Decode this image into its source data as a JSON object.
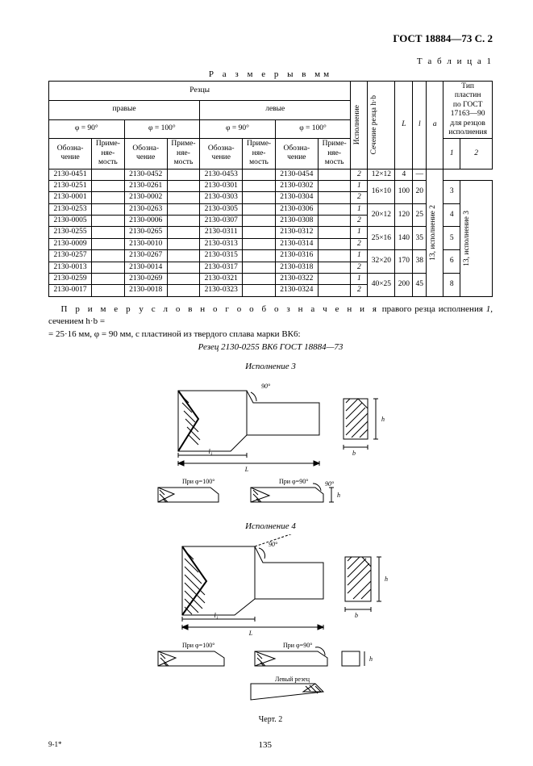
{
  "header": {
    "doc_id": "ГОСТ 18884—73  С. 2",
    "table_label": "Т а б л и ц а 1",
    "sizes_caption": "Р а з м е р ы  в  мм"
  },
  "table": {
    "group_cutters": "Резцы",
    "right": "правые",
    "left": "левые",
    "phi90": "φ = 90°",
    "phi100": "φ = 100°",
    "designation": "Обозна-\nчение",
    "applicability": "Приме-\nняе-\nмость",
    "execution": "Исполнение",
    "cross_section": "Сечение резца h·b",
    "L": "L",
    "l": "l",
    "a": "a",
    "plate_type": "Тип\nпластин\nпо ГОСТ\n17163—90\nдля резцов\nисполнения",
    "col1": "1",
    "col2": "2",
    "rows": [
      {
        "c1": "2130-0451",
        "c2": "2130-0452",
        "c3": "2130-0453",
        "c4": "2130-0454",
        "exec": "2",
        "hb": "12×12",
        "L": "",
        "l": "",
        "a": "4",
        "t1": "—",
        "t2": ""
      },
      {
        "c1": "2130-0251",
        "c2": "2130-0261",
        "c3": "2130-0301",
        "c4": "2130-0302",
        "exec": "1",
        "hb": "16×10",
        "L": "100",
        "l": "20",
        "a": "3",
        "t1": "",
        "t2": ""
      },
      {
        "c1": "2130-0001",
        "c2": "2130-0002",
        "c3": "2130-0303",
        "c4": "2130-0304",
        "exec": "2",
        "hb": "",
        "L": "",
        "l": "",
        "a": "",
        "t1": "",
        "t2": ""
      },
      {
        "c1": "2130-0253",
        "c2": "2130-0263",
        "c3": "2130-0305",
        "c4": "2130-0306",
        "exec": "1",
        "hb": "20×12",
        "L": "120",
        "l": "25",
        "a": "4",
        "t1": "",
        "t2": ""
      },
      {
        "c1": "2130-0005",
        "c2": "2130-0006",
        "c3": "2130-0307",
        "c4": "2130-0308",
        "exec": "2",
        "hb": "",
        "L": "",
        "l": "",
        "a": "",
        "t1": "",
        "t2": ""
      },
      {
        "c1": "2130-0255",
        "c2": "2130-0265",
        "c3": "2130-0311",
        "c4": "2130-0312",
        "exec": "1",
        "hb": "25×16",
        "L": "140",
        "l": "35",
        "a": "5",
        "t1": "",
        "t2": ""
      },
      {
        "c1": "2130-0009",
        "c2": "2130-0010",
        "c3": "2130-0313",
        "c4": "2130-0314",
        "exec": "2",
        "hb": "",
        "L": "",
        "l": "",
        "a": "",
        "t1": "",
        "t2": ""
      },
      {
        "c1": "2130-0257",
        "c2": "2130-0267",
        "c3": "2130-0315",
        "c4": "2130-0316",
        "exec": "1",
        "hb": "32×20",
        "L": "170",
        "l": "38",
        "a": "6",
        "t1": "",
        "t2": ""
      },
      {
        "c1": "2130-0013",
        "c2": "2130-0014",
        "c3": "2130-0317",
        "c4": "2130-0318",
        "exec": "2",
        "hb": "",
        "L": "",
        "l": "",
        "a": "",
        "t1": "",
        "t2": ""
      },
      {
        "c1": "2130-0259",
        "c2": "2130-0269",
        "c3": "2130-0321",
        "c4": "2130-0322",
        "exec": "1",
        "hb": "40×25",
        "L": "200",
        "l": "45",
        "a": "8",
        "t1": "",
        "t2": ""
      },
      {
        "c1": "2130-0017",
        "c2": "2130-0018",
        "c3": "2130-0323",
        "c4": "2130-0324",
        "exec": "2",
        "hb": "",
        "L": "",
        "l": "",
        "a": "",
        "t1": "",
        "t2": ""
      }
    ],
    "vert13_1": "13, исполнение 3",
    "vert13_2": "13, исполнение 2"
  },
  "note": {
    "line1a": "П р и м е р",
    "line1b": "у с л о в н о г о   о б о з н а ч е н и я",
    "line1c": " правого резца исполнения ",
    "line1d": "1",
    "line1e": ", сечением h·b =",
    "line2": "= 25·16 мм, φ = 90 мм, с пластиной из твердого сплава марки ВК6:",
    "line3": "Резец 2130-0255 ВК6 ГОСТ 18884—73"
  },
  "figures": {
    "fig3_title": "Исполнение 3",
    "fig4_title": "Исполнение 4",
    "phi100_label": "При φ=100°",
    "phi90_label": "При φ=90°",
    "left_cutter": "Левый резец",
    "caption": "Черт. 2",
    "dims": {
      "L": "L",
      "l1": "l₁",
      "l": "l",
      "h": "h",
      "b": "b",
      "h1": "h₁",
      "a": "a",
      "n": "n",
      "deg90": "90°"
    }
  },
  "footer": {
    "left": "9-1*",
    "page": "135"
  },
  "style": {
    "stroke": "#000000",
    "fill_hatch": "#000000",
    "background": "#ffffff"
  }
}
